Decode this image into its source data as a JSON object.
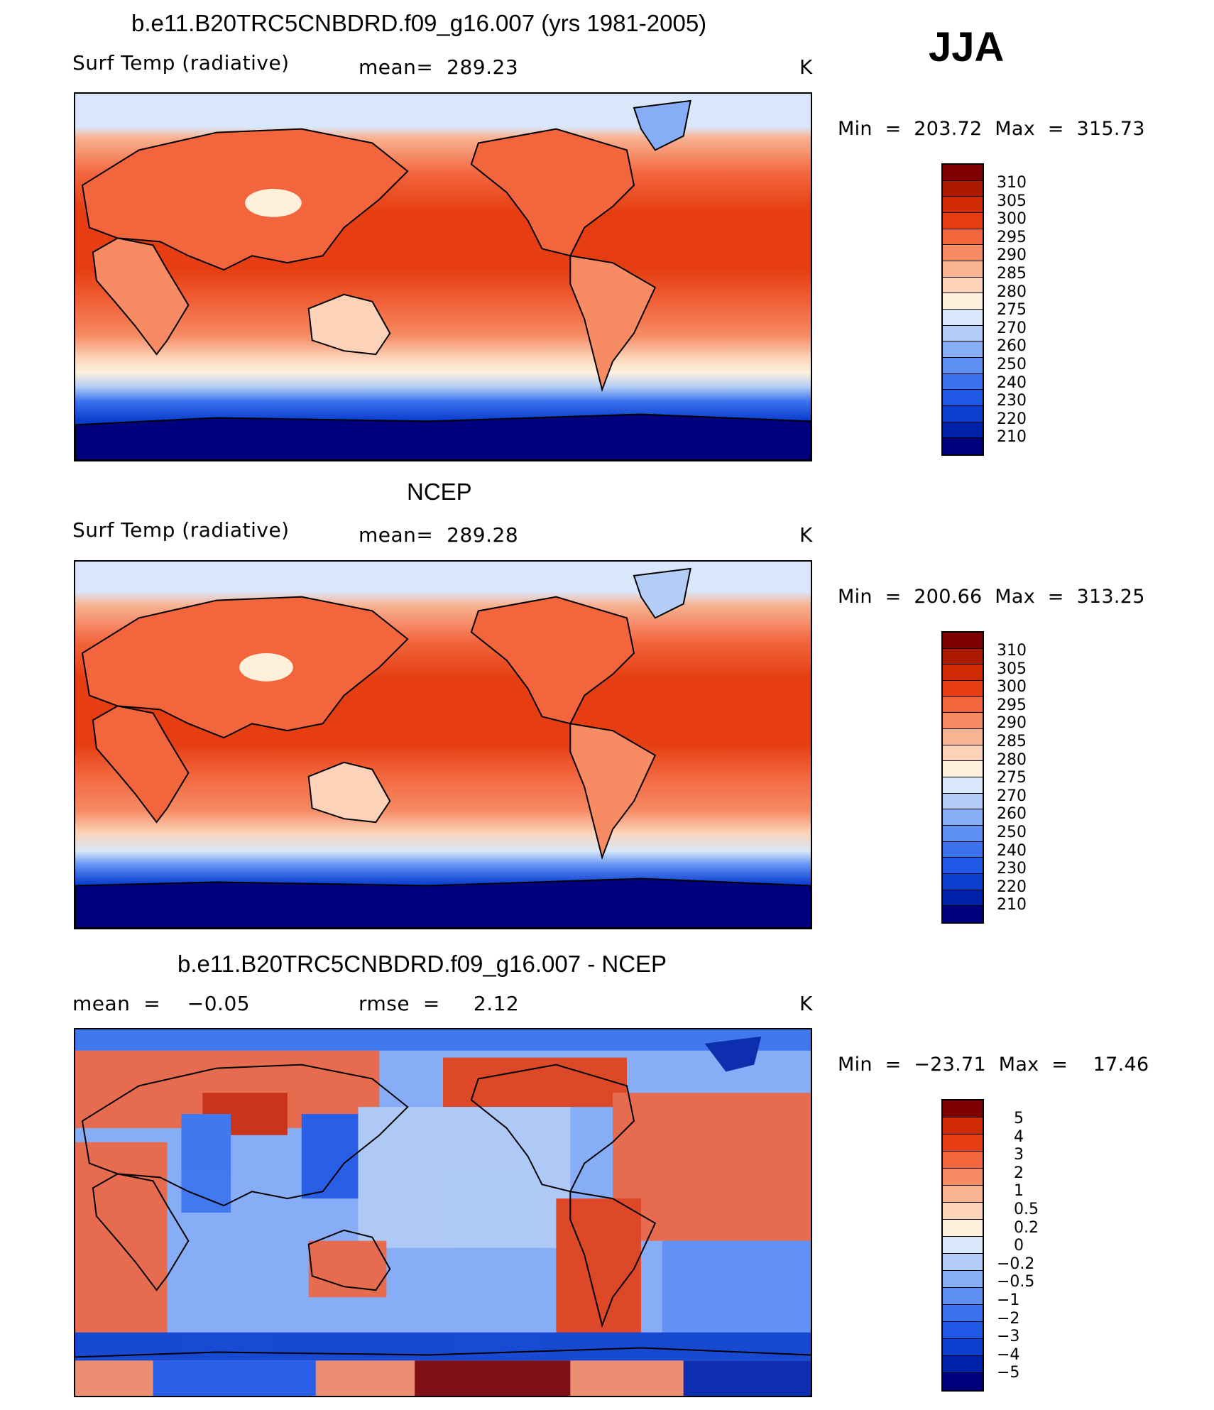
{
  "season": "JJA",
  "palette": {
    "temp": [
      "#00007f",
      "#0022a8",
      "#0c3fd0",
      "#1f57e6",
      "#3b73ee",
      "#5e90f3",
      "#87adf6",
      "#b3cdf7",
      "#d8e8fa",
      "#fff0dc",
      "#fcd3b8",
      "#f9b292",
      "#f68b64",
      "#f2653d",
      "#e63e12",
      "#cf2a04",
      "#ad1a02",
      "#7f0000"
    ],
    "diff": [
      "#00007f",
      "#0022a8",
      "#0c3fd0",
      "#1f57e6",
      "#3b73ee",
      "#5e90f3",
      "#87adf6",
      "#b3cdf7",
      "#d8e8fa",
      "#fff0dc",
      "#fcd3b8",
      "#f9b292",
      "#f68b64",
      "#f2653d",
      "#e63e12",
      "#cf2a04",
      "#7f0000"
    ]
  },
  "panels": [
    {
      "title": "b.e11.B20TRC5CNBDRD.f09_g16.007 (yrs 1981-2005)",
      "left_label": "Surf Temp (radiative)",
      "center_label": "mean=  289.23",
      "units": "K",
      "min_max": "Min  =  203.72  Max  =  315.73",
      "colorbar_labels": [
        "310",
        "305",
        "300",
        "295",
        "290",
        "285",
        "280",
        "275",
        "270",
        "260",
        "250",
        "240",
        "230",
        "220",
        "210"
      ],
      "palette": "temp"
    },
    {
      "title": "NCEP",
      "left_label": "Surf Temp (radiative)",
      "center_label": "mean=  289.28",
      "units": "K",
      "min_max": "Min  =  200.66  Max  =  313.25",
      "colorbar_labels": [
        "310",
        "305",
        "300",
        "295",
        "290",
        "285",
        "280",
        "275",
        "270",
        "260",
        "250",
        "240",
        "230",
        "220",
        "210"
      ],
      "palette": "temp"
    },
    {
      "title": "b.e11.B20TRC5CNBDRD.f09_g16.007 - NCEP",
      "left_label": "mean  =    −0.05",
      "center_label": "rmse  =     2.12",
      "units": "K",
      "min_max": "Min  =  −23.71  Max  =    17.46",
      "colorbar_labels": [
        "5",
        "4",
        "3",
        "2",
        "1",
        "0.5",
        "0.2",
        "0",
        "−0.2",
        "−0.5",
        "−1",
        "−2",
        "−3",
        "−4",
        "−5"
      ],
      "palette": "diff"
    }
  ]
}
